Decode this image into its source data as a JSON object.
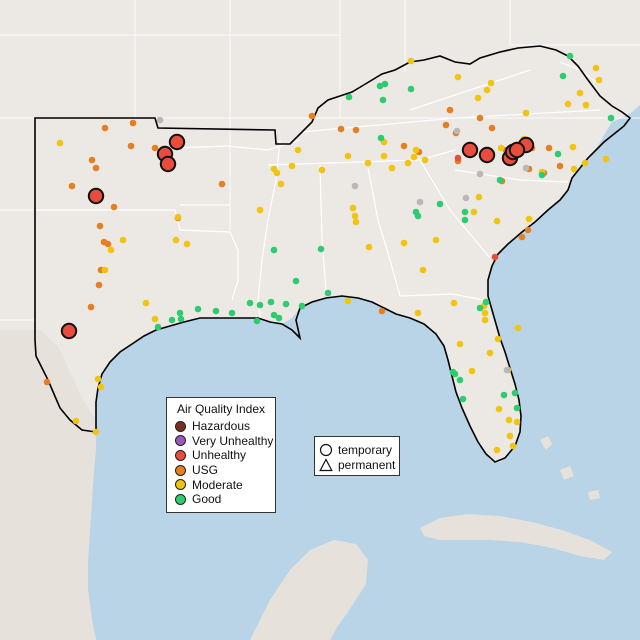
{
  "legend": {
    "title": "Air Quality Index",
    "categories": [
      {
        "label": "Hazardous",
        "color": "#7b2d26"
      },
      {
        "label": "Very Unhealthy",
        "color": "#9b59b6"
      },
      {
        "label": "Unhealthy",
        "color": "#e74c3c"
      },
      {
        "label": "USG",
        "color": "#e67e22"
      },
      {
        "label": "Moderate",
        "color": "#f1c40f"
      },
      {
        "label": "Good",
        "color": "#2ecc71"
      }
    ]
  },
  "shape_legend": {
    "temporary": "temporary",
    "permanent": "permanent"
  },
  "colors": {
    "ocean": "#b9d4e6",
    "land": "#ece8e3",
    "land_mexico": "#e8e4de",
    "state_border": "#ffffff",
    "region_outline": "#000000",
    "no_data": "#b8b8b8"
  }
}
